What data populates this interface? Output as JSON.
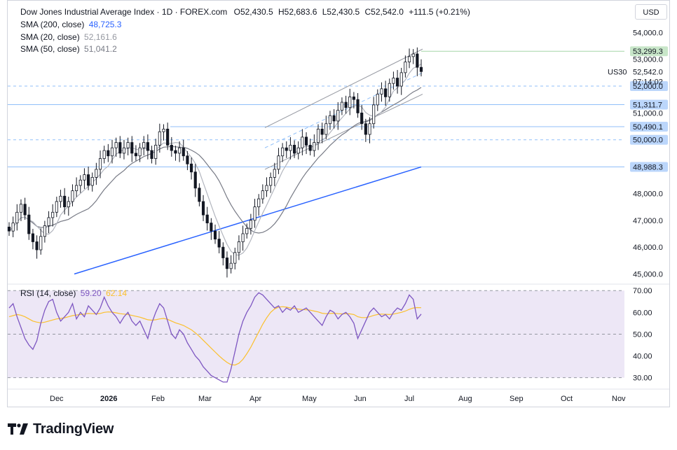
{
  "header": {
    "symbol": "Dow Jones Industrial Average Index · 1D · FOREX.com",
    "open_label": "O",
    "open": "52,430.5",
    "high_label": "H",
    "high": "52,683.6",
    "low_label": "L",
    "low": "52,430.5",
    "close_label": "C",
    "close": "52,542.0",
    "change": "+111.5 (+0.21%)"
  },
  "indicators": [
    {
      "label": "SMA (200, close)",
      "value": "48,725.3",
      "color": "#2962ff"
    },
    {
      "label": "SMA (20, close)",
      "value": "52,161.6",
      "color": "#9598a1"
    },
    {
      "label": "SMA (50, close)",
      "value": "51,041.2",
      "color": "#787b86"
    }
  ],
  "rsi_legend": {
    "label": "RSI (14, close)",
    "value": "59.20",
    "ma_value": "62.14",
    "color": "#7e57c2",
    "ma_color": "#fbc02d"
  },
  "currency": "USD",
  "ticker": "US30",
  "price_now": "52,542.0",
  "countdown": "07:14:02",
  "brand": "TradingView",
  "chart_data": {
    "type": "candlestick",
    "price_axis": {
      "range": [
        44700,
        54400
      ],
      "ticks": [
        "54,000.0",
        "53,000.0",
        "52,000.0",
        "51,000.0",
        "50,000.0",
        "49,000.0",
        "48,000.0",
        "47,000.0",
        "46,000.0",
        "45,000.0"
      ],
      "tick_values": [
        54000,
        53000,
        52000,
        51000,
        50000,
        49000,
        48000,
        47000,
        46000,
        45000
      ]
    },
    "price_labels": [
      {
        "text": "53,299.3",
        "value": 53299.3,
        "bg": "#c8e6c9"
      },
      {
        "text": "52,000.0",
        "value": 52000,
        "bg": "#bbd6fb"
      },
      {
        "text": "51,311.7",
        "value": 51311.7,
        "bg": "#bbd6fb"
      },
      {
        "text": "50,490.1",
        "value": 50490.1,
        "bg": "#bbd6fb"
      },
      {
        "text": "50,000.0",
        "value": 50000,
        "bg": "#bbd6fb"
      },
      {
        "text": "48,988.3",
        "value": 48988.3,
        "bg": "#bbd6fb"
      }
    ],
    "time_axis": [
      "Dec",
      "2026",
      "Feb",
      "Mar",
      "Apr",
      "May",
      "Jun",
      "Jul",
      "Aug",
      "Sep",
      "Oct",
      "Nov"
    ],
    "closes": [
      46600,
      46900,
      47300,
      47600,
      47200,
      46500,
      46200,
      45900,
      46400,
      46800,
      47100,
      47300,
      47700,
      47900,
      47500,
      47700,
      48100,
      48300,
      48500,
      48700,
      48300,
      48600,
      48900,
      49300,
      49600,
      49400,
      49700,
      49900,
      49500,
      49700,
      49900,
      49500,
      49400,
      49700,
      49900,
      49600,
      49300,
      49800,
      50300,
      50400,
      49800,
      49600,
      49500,
      49700,
      49400,
      49100,
      48800,
      48200,
      47700,
      47200,
      46900,
      46600,
      46300,
      46000,
      45600,
      45200,
      45400,
      45800,
      46200,
      46500,
      46700,
      47000,
      47500,
      47800,
      48100,
      48300,
      48600,
      48900,
      49400,
      49700,
      49600,
      49800,
      49500,
      49700,
      50100,
      49800,
      49600,
      49900,
      50400,
      50200,
      50600,
      50900,
      50700,
      51100,
      51400,
      51200,
      51600,
      51500,
      51000,
      50600,
      50200,
      50600,
      51300,
      51700,
      51900,
      51600,
      52100,
      52300,
      52000,
      52500,
      52900,
      53100,
      53200,
      52700,
      52542
    ],
    "sma200": [
      45000,
      48988
    ],
    "sma50_end": 51041.2,
    "sma20_end": 52161.6,
    "rsi_axis": {
      "range": [
        27,
        72
      ],
      "ticks": [
        "70.00",
        "60.00",
        "50.00",
        "40.00",
        "30.00"
      ],
      "tick_values": [
        70,
        60,
        50,
        40,
        30
      ]
    },
    "rsi": [
      62,
      64,
      58,
      53,
      48,
      45,
      43,
      47,
      55,
      61,
      65,
      66,
      60,
      56,
      58,
      60,
      64,
      57,
      60,
      58,
      63,
      61,
      59,
      62,
      67,
      63,
      60,
      58,
      55,
      58,
      60,
      56,
      54,
      56,
      52,
      48,
      55,
      60,
      64,
      62,
      56,
      50,
      48,
      52,
      50,
      46,
      43,
      40,
      38,
      35,
      33,
      31,
      30,
      29,
      28,
      28,
      34,
      42,
      50,
      56,
      60,
      63,
      67,
      69,
      68,
      66,
      64,
      62,
      63,
      60,
      62,
      61,
      63,
      60,
      61,
      62,
      60,
      58,
      56,
      54,
      58,
      61,
      60,
      57,
      59,
      60,
      58,
      55,
      48,
      52,
      56,
      60,
      62,
      60,
      58,
      59,
      57,
      60,
      62,
      61,
      64,
      68,
      66,
      57,
      59.2
    ],
    "rsi_ma": [
      58,
      58.5,
      59,
      58.7,
      58,
      57,
      56,
      55.5,
      55.2,
      55.5,
      56,
      56.5,
      57,
      57.2,
      57.5,
      58,
      58.5,
      58.8,
      59,
      59.2,
      59.5,
      59.4,
      59.3,
      59.5,
      60,
      60.2,
      60.1,
      59.8,
      59.4,
      59.2,
      59,
      58.6,
      58.2,
      57.8,
      57.2,
      56.6,
      56.4,
      56.6,
      57,
      57.2,
      56.8,
      56,
      55.2,
      54.6,
      54,
      53,
      52,
      50.6,
      49,
      47.2,
      45.4,
      43.6,
      41.8,
      40,
      38.4,
      37,
      36,
      35.8,
      36.6,
      38.4,
      41,
      44,
      47.5,
      51,
      54.5,
      57.5,
      60,
      61.6,
      62.4,
      62.6,
      62.4,
      62,
      61.8,
      61.5,
      61.3,
      61.2,
      61,
      60.6,
      60.2,
      59.6,
      59.4,
      59.5,
      59.6,
      59.4,
      59.3,
      59.4,
      59.3,
      59,
      58,
      57.6,
      57.6,
      58,
      58.6,
      59,
      59.2,
      59.1,
      59,
      59.2,
      59.6,
      60,
      60.6,
      61.4,
      62,
      62.2,
      62.14
    ]
  }
}
